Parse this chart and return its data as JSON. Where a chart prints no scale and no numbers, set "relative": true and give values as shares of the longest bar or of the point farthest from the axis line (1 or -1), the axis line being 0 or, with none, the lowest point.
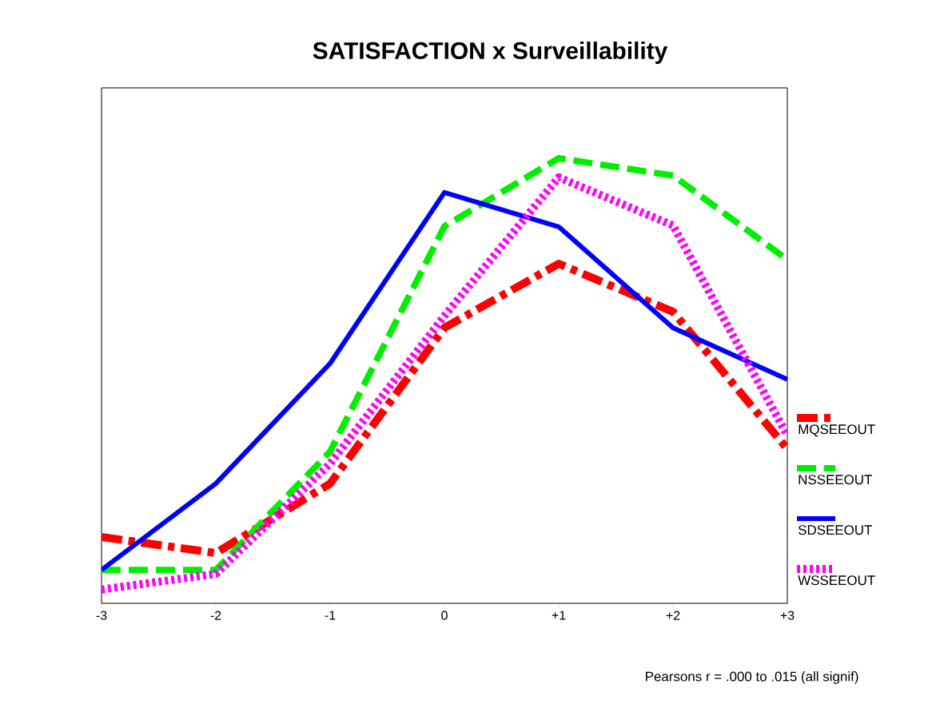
{
  "chart_data": {
    "type": "line",
    "title": "SATISFACTION  x  Surveillability",
    "categories": [
      "-3",
      "-2",
      "-1",
      "0",
      "+1",
      "+2",
      "+3"
    ],
    "relative": true,
    "series": [
      {
        "name": "MQSEEOUT",
        "color": "#ff0000",
        "line_style": "dashdot",
        "values": [
          0.149,
          0.113,
          0.269,
          0.619,
          0.763,
          0.655,
          0.347
        ]
      },
      {
        "name": "NSSEEOUT",
        "color": "#00ee00",
        "line_style": "dashed",
        "values": [
          0.075,
          0.075,
          0.341,
          0.847,
          1.0,
          0.961,
          0.772
        ]
      },
      {
        "name": "SDSEEOUT",
        "color": "#0000ff",
        "line_style": "solid",
        "values": [
          0.075,
          0.269,
          0.539,
          0.923,
          0.846,
          0.619,
          0.503
        ]
      },
      {
        "name": "WSSEEOUT",
        "color": "#ff00ff",
        "line_style": "dotted",
        "values": [
          0.031,
          0.066,
          0.314,
          0.646,
          0.957,
          0.849,
          0.377
        ]
      }
    ],
    "legend": "right",
    "grid": false,
    "annotations": [
      "Pearsons r = .000 to .015 (all signif)"
    ]
  }
}
